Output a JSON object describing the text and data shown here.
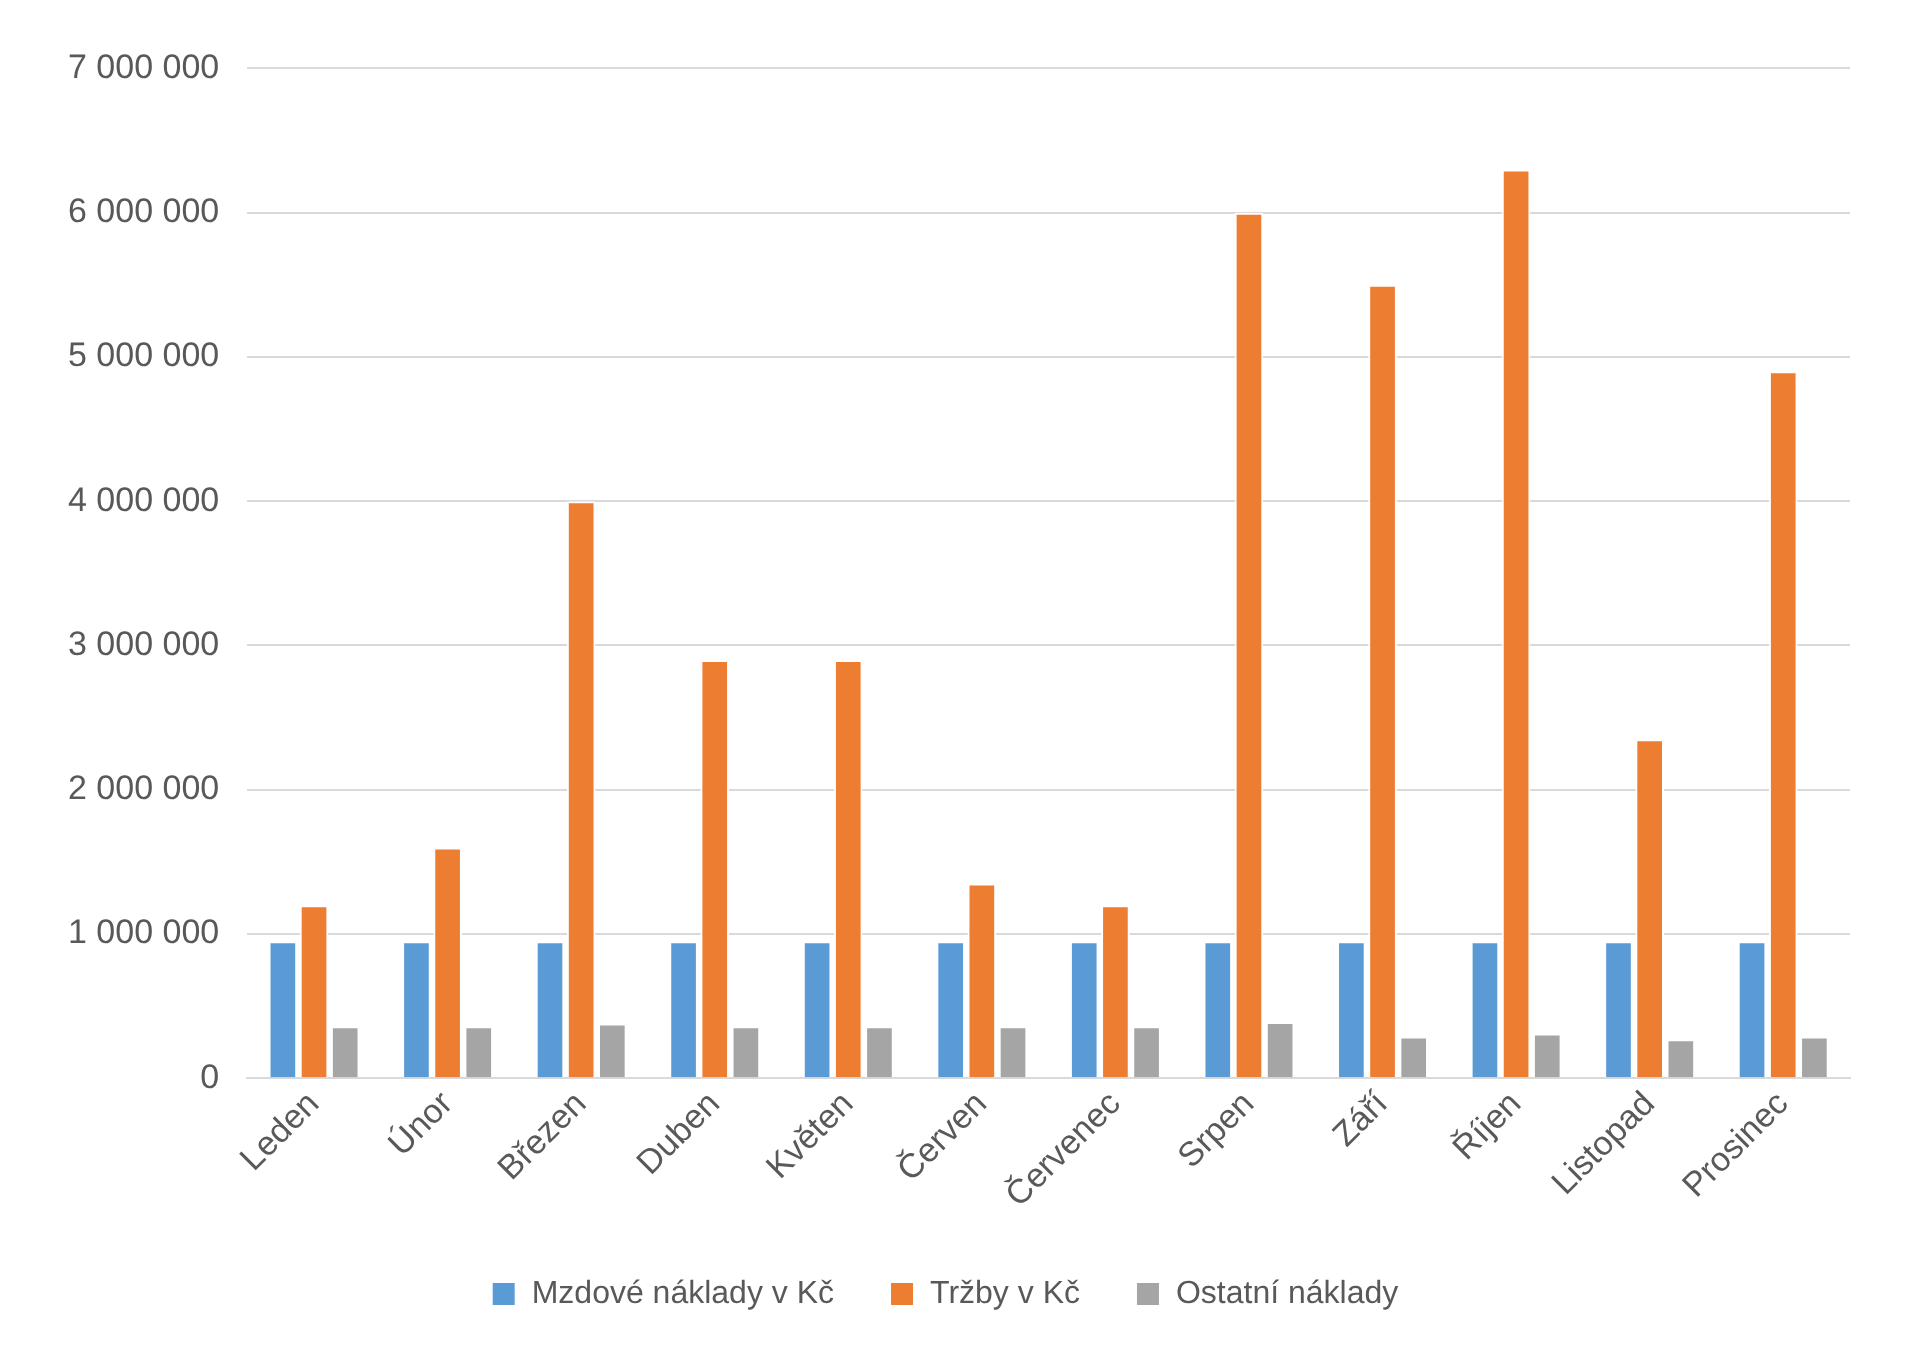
{
  "chart_data": {
    "type": "bar",
    "categories": [
      "Leden",
      "Únor",
      "Březen",
      "Duben",
      "Květen",
      "Červen",
      "Červenec",
      "Srpen",
      "Září",
      "Říjen",
      "Listopad",
      "Prosinec"
    ],
    "series": [
      {
        "name": "Mzdové náklady v Kč",
        "color": "#5b9bd5",
        "values": [
          950000,
          950000,
          950000,
          950000,
          950000,
          950000,
          950000,
          950000,
          950000,
          950000,
          950000,
          950000
        ]
      },
      {
        "name": "Tržby v Kč",
        "color": "#ed7d31",
        "values": [
          1200000,
          1600000,
          4000000,
          2900000,
          2900000,
          1350000,
          1200000,
          6000000,
          5500000,
          6300000,
          2350000,
          4900000
        ]
      },
      {
        "name": "Ostatní náklady",
        "color": "#a5a5a5",
        "values": [
          360000,
          360000,
          380000,
          360000,
          360000,
          360000,
          360000,
          390000,
          290000,
          310000,
          270000,
          290000
        ]
      }
    ],
    "ylim": [
      0,
      7000000
    ],
    "yticks": [
      {
        "value": 0,
        "label": "0"
      },
      {
        "value": 1000000,
        "label": "1 000 000"
      },
      {
        "value": 2000000,
        "label": "2 000 000"
      },
      {
        "value": 3000000,
        "label": "3 000 000"
      },
      {
        "value": 4000000,
        "label": "4 000 000"
      },
      {
        "value": 5000000,
        "label": "5 000 000"
      },
      {
        "value": 6000000,
        "label": "6 000 000"
      },
      {
        "value": 7000000,
        "label": "7 000 000"
      }
    ],
    "grid": "y",
    "legend": "bottom"
  }
}
